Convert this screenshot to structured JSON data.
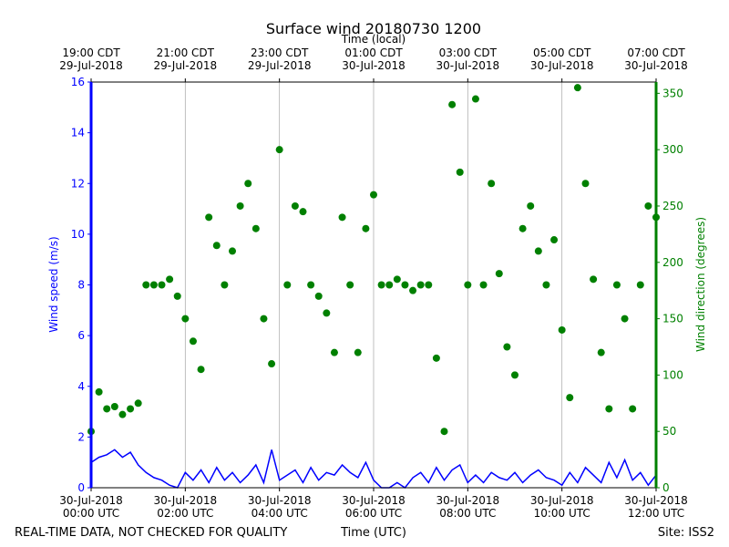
{
  "chart_data": {
    "type": "line_scatter_dual",
    "title": "Surface wind 20180730 1200",
    "xlabel": "Time (UTC)",
    "x2label": "Time (local)",
    "ylabel": "Wind speed (m/s)",
    "y2label": "Wind direction (degrees)",
    "footer_left": "REAL-TIME DATA, NOT CHECKED FOR QUALITY",
    "footer_right": "Site: ISS2",
    "grid": "x",
    "xlim": [
      "2018-07-30 00:00",
      "2018-07-30 12:00"
    ],
    "xticks": [
      {
        "value": "2018-07-30 00:00",
        "label": "30-Jul-2018\n00:00 UTC"
      },
      {
        "value": "2018-07-30 02:00",
        "label": "30-Jul-2018\n02:00 UTC"
      },
      {
        "value": "2018-07-30 04:00",
        "label": "30-Jul-2018\n04:00 UTC"
      },
      {
        "value": "2018-07-30 06:00",
        "label": "30-Jul-2018\n06:00 UTC"
      },
      {
        "value": "2018-07-30 08:00",
        "label": "30-Jul-2018\n08:00 UTC"
      },
      {
        "value": "2018-07-30 10:00",
        "label": "30-Jul-2018\n10:00 UTC"
      },
      {
        "value": "2018-07-30 12:00",
        "label": "30-Jul-2018\n12:00 UTC"
      }
    ],
    "x2ticks": [
      {
        "value": "2018-07-30 00:00",
        "label": "19:00 CDT\n29-Jul-2018"
      },
      {
        "value": "2018-07-30 02:00",
        "label": "21:00 CDT\n29-Jul-2018"
      },
      {
        "value": "2018-07-30 04:00",
        "label": "23:00 CDT\n29-Jul-2018"
      },
      {
        "value": "2018-07-30 06:00",
        "label": "01:00 CDT\n30-Jul-2018"
      },
      {
        "value": "2018-07-30 08:00",
        "label": "03:00 CDT\n30-Jul-2018"
      },
      {
        "value": "2018-07-30 10:00",
        "label": "05:00 CDT\n30-Jul-2018"
      },
      {
        "value": "2018-07-30 12:00",
        "label": "07:00 CDT\n30-Jul-2018"
      }
    ],
    "ylim": [
      0,
      16
    ],
    "yticks": [
      0,
      2,
      4,
      6,
      8,
      10,
      12,
      14,
      16
    ],
    "y2lim": [
      0,
      360
    ],
    "y2ticks": [
      0,
      50,
      100,
      150,
      200,
      250,
      300,
      350
    ],
    "x": [
      "2018-07-30 00:00",
      "2018-07-30 00:10",
      "2018-07-30 00:20",
      "2018-07-30 00:30",
      "2018-07-30 00:40",
      "2018-07-30 00:50",
      "2018-07-30 01:00",
      "2018-07-30 01:10",
      "2018-07-30 01:20",
      "2018-07-30 01:30",
      "2018-07-30 01:40",
      "2018-07-30 01:50",
      "2018-07-30 02:00",
      "2018-07-30 02:10",
      "2018-07-30 02:20",
      "2018-07-30 02:30",
      "2018-07-30 02:40",
      "2018-07-30 02:50",
      "2018-07-30 03:00",
      "2018-07-30 03:10",
      "2018-07-30 03:20",
      "2018-07-30 03:30",
      "2018-07-30 03:40",
      "2018-07-30 03:50",
      "2018-07-30 04:00",
      "2018-07-30 04:10",
      "2018-07-30 04:20",
      "2018-07-30 04:30",
      "2018-07-30 04:40",
      "2018-07-30 04:50",
      "2018-07-30 05:00",
      "2018-07-30 05:10",
      "2018-07-30 05:20",
      "2018-07-30 05:30",
      "2018-07-30 05:40",
      "2018-07-30 05:50",
      "2018-07-30 06:00",
      "2018-07-30 06:10",
      "2018-07-30 06:20",
      "2018-07-30 06:30",
      "2018-07-30 06:40",
      "2018-07-30 06:50",
      "2018-07-30 07:00",
      "2018-07-30 07:10",
      "2018-07-30 07:20",
      "2018-07-30 07:30",
      "2018-07-30 07:40",
      "2018-07-30 07:50",
      "2018-07-30 08:00",
      "2018-07-30 08:10",
      "2018-07-30 08:20",
      "2018-07-30 08:30",
      "2018-07-30 08:40",
      "2018-07-30 08:50",
      "2018-07-30 09:00",
      "2018-07-30 09:10",
      "2018-07-30 09:20",
      "2018-07-30 09:30",
      "2018-07-30 09:40",
      "2018-07-30 09:50",
      "2018-07-30 10:00",
      "2018-07-30 10:10",
      "2018-07-30 10:20",
      "2018-07-30 10:30",
      "2018-07-30 10:40",
      "2018-07-30 10:50",
      "2018-07-30 11:00",
      "2018-07-30 11:10",
      "2018-07-30 11:20",
      "2018-07-30 11:30",
      "2018-07-30 11:40",
      "2018-07-30 11:50",
      "2018-07-30 12:00"
    ],
    "series": [
      {
        "name": "Wind speed",
        "color": "#0000ff",
        "axis": "y",
        "mark": "line",
        "values": [
          1.0,
          1.2,
          1.3,
          1.5,
          1.2,
          1.4,
          0.9,
          0.6,
          0.4,
          0.3,
          0.1,
          0.0,
          0.6,
          0.3,
          0.7,
          0.2,
          0.8,
          0.3,
          0.6,
          0.2,
          0.5,
          0.9,
          0.2,
          1.5,
          0.3,
          0.5,
          0.7,
          0.2,
          0.8,
          0.3,
          0.6,
          0.5,
          0.9,
          0.6,
          0.4,
          1.0,
          0.3,
          0.0,
          0.0,
          0.2,
          0.0,
          0.4,
          0.6,
          0.2,
          0.8,
          0.3,
          0.7,
          0.9,
          0.2,
          0.5,
          0.2,
          0.6,
          0.4,
          0.3,
          0.6,
          0.2,
          0.5,
          0.7,
          0.4,
          0.3,
          0.1,
          0.6,
          0.2,
          0.8,
          0.5,
          0.2,
          1.0,
          0.4,
          1.1,
          0.3,
          0.6,
          0.1,
          0.5
        ]
      },
      {
        "name": "Wind direction",
        "color": "#008000",
        "axis": "y2",
        "mark": "scatter",
        "values": [
          50,
          85,
          70,
          72,
          65,
          70,
          75,
          180,
          180,
          180,
          185,
          170,
          150,
          130,
          105,
          240,
          215,
          180,
          210,
          250,
          270,
          230,
          150,
          110,
          300,
          180,
          250,
          245,
          180,
          170,
          155,
          120,
          240,
          180,
          120,
          230,
          260,
          180,
          180,
          185,
          180,
          175,
          180,
          180,
          115,
          50,
          340,
          280,
          180,
          345,
          180,
          270,
          190,
          125,
          100,
          230,
          250,
          210,
          180,
          220,
          140,
          80,
          355,
          270,
          185,
          120,
          70,
          180,
          150,
          70,
          180,
          250,
          240
        ]
      }
    ]
  }
}
